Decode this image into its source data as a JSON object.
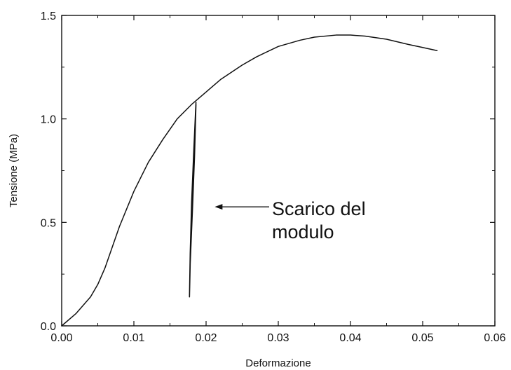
{
  "chart_data": {
    "type": "line",
    "title": "",
    "xlabel": "Deformazione",
    "ylabel": "Tensione (MPa)",
    "xlim": [
      0,
      0.06
    ],
    "ylim": [
      0,
      1.5
    ],
    "x_ticks": [
      "0.00",
      "0.01",
      "0.02",
      "0.03",
      "0.04",
      "0.05",
      "0.06"
    ],
    "y_ticks": [
      "0.0",
      "0.5",
      "1.0",
      "1.5"
    ],
    "grid": false,
    "legend": "none",
    "series": [
      {
        "color": "#111111",
        "x": [
          0,
          0.002,
          0.004,
          0.005,
          0.006,
          0.008,
          0.01,
          0.012,
          0.014,
          0.016,
          0.018,
          0.02,
          0.022,
          0.025,
          0.027,
          0.03,
          0.033,
          0.035,
          0.038,
          0.04,
          0.042,
          0.045,
          0.048,
          0.05,
          0.052
        ],
        "y": [
          0,
          0.06,
          0.14,
          0.2,
          0.28,
          0.48,
          0.65,
          0.79,
          0.9,
          1.0,
          1.07,
          1.13,
          1.19,
          1.26,
          1.3,
          1.35,
          1.38,
          1.395,
          1.405,
          1.405,
          1.4,
          1.385,
          1.36,
          1.345,
          1.33
        ]
      },
      {
        "color": "#111111",
        "x": [
          0.0186,
          0.0183,
          0.018,
          0.0178,
          0.0177,
          0.0178,
          0.0181,
          0.0184,
          0.0186
        ],
        "y": [
          1.08,
          0.85,
          0.6,
          0.35,
          0.14,
          0.3,
          0.55,
          0.82,
          1.07
        ]
      }
    ],
    "annotations": [
      {
        "lines": [
          "Scarico del",
          "modulo"
        ],
        "target": [
          0.0212,
          0.575
        ]
      }
    ]
  }
}
